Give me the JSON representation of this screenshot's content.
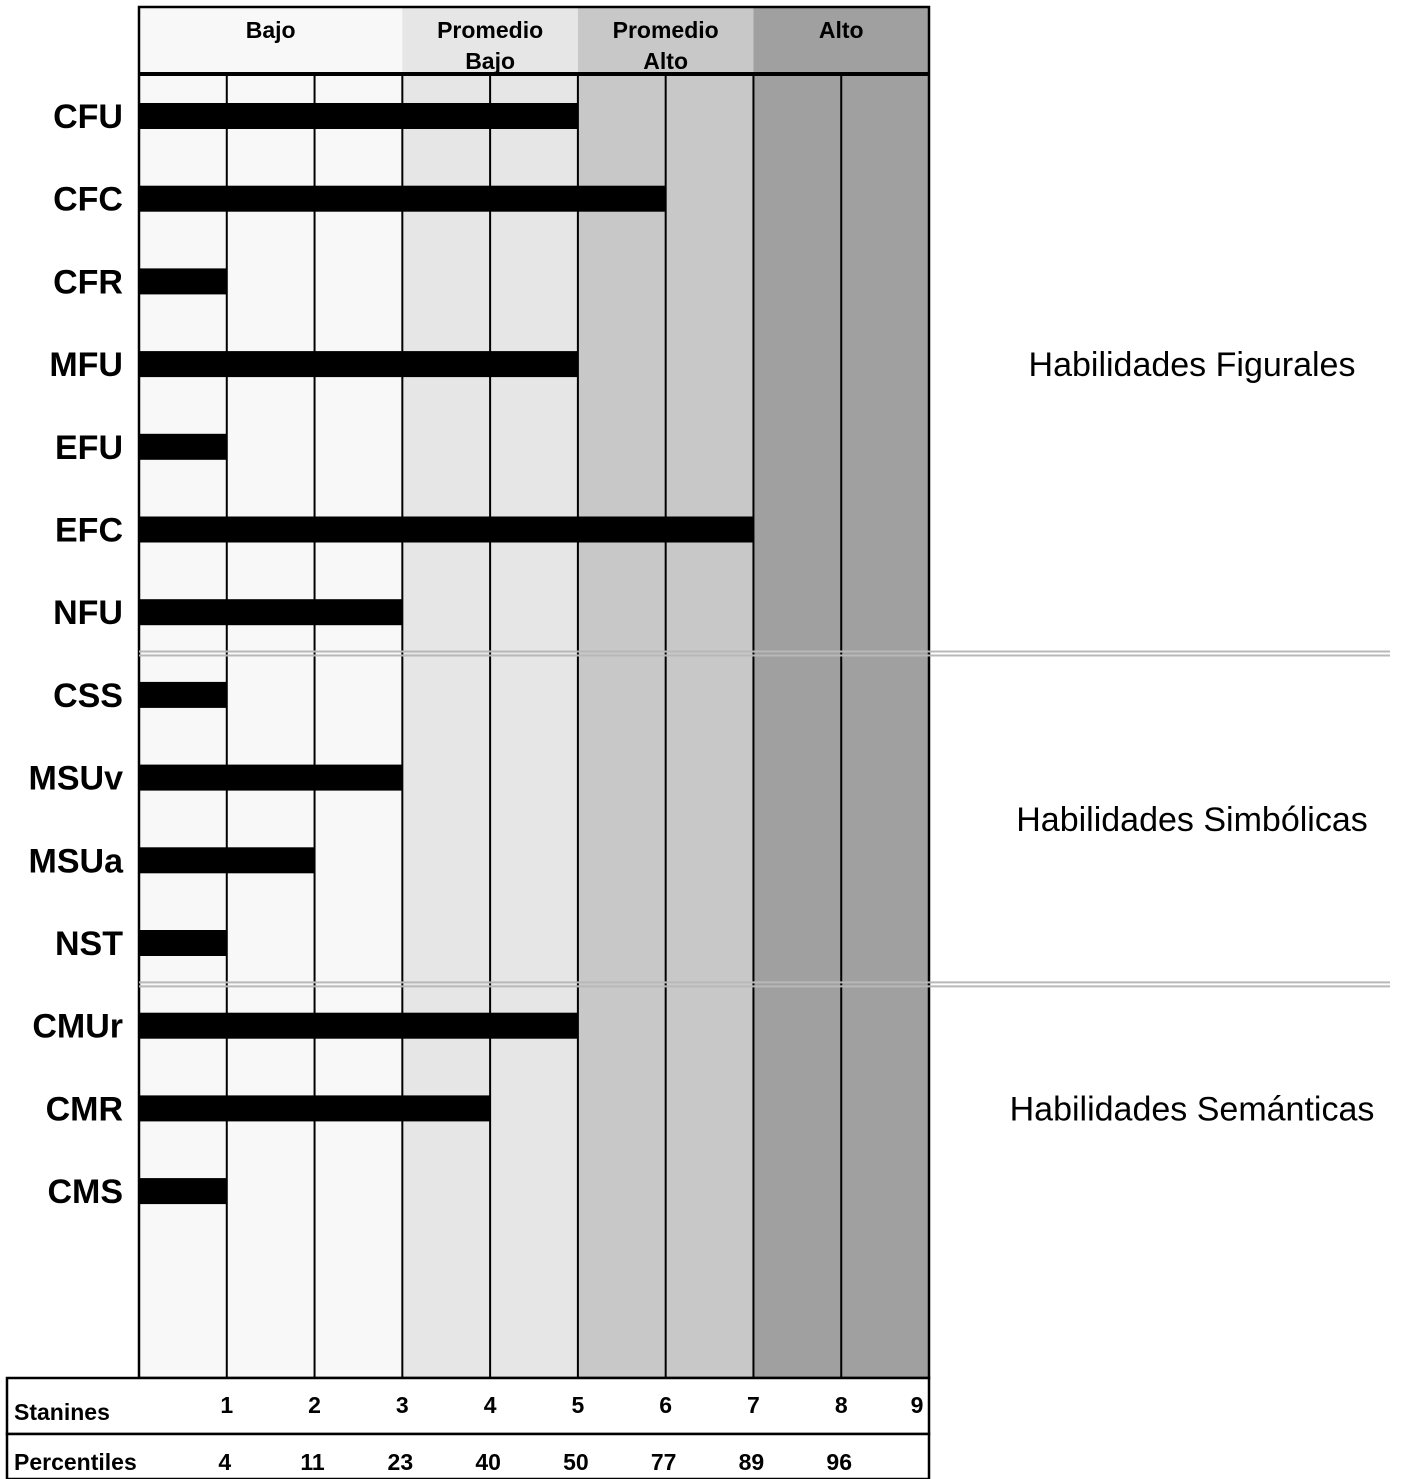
{
  "chart_data": {
    "type": "bar",
    "orientation": "horizontal",
    "categories": [
      "CFU",
      "CFC",
      "CFR",
      "MFU",
      "EFU",
      "EFC",
      "NFU",
      "CSS",
      "MSUv",
      "MSUa",
      "NST",
      "CMUr",
      "CMR",
      "CMS"
    ],
    "values": [
      5,
      6,
      1,
      5,
      1,
      7,
      3,
      1,
      3,
      2,
      1,
      5,
      4,
      1
    ],
    "xlim": [
      0,
      9
    ],
    "bar_color": "#000000",
    "bands": [
      {
        "label_lines": [
          "Bajo"
        ],
        "from": 0,
        "to": 3,
        "color": "#f8f8f8"
      },
      {
        "label_lines": [
          "Promedio",
          "Bajo"
        ],
        "from": 3,
        "to": 5,
        "color": "#e6e6e6"
      },
      {
        "label_lines": [
          "Promedio",
          "Alto"
        ],
        "from": 5,
        "to": 7,
        "color": "#c8c8c8"
      },
      {
        "label_lines": [
          "Alto"
        ],
        "from": 7,
        "to": 9,
        "color": "#a0a0a0"
      }
    ],
    "stanines": {
      "label": "Stanines",
      "ticks": [
        "1",
        "2",
        "3",
        "4",
        "5",
        "6",
        "7",
        "8",
        "9"
      ]
    },
    "percentiles": {
      "label": "Percentiles",
      "ticks": [
        "4",
        "11",
        "23",
        "40",
        "50",
        "77",
        "89",
        "96"
      ]
    },
    "groups": [
      {
        "label": "Habilidades Figurales",
        "first": 0,
        "last": 6
      },
      {
        "label": "Habilidades Simbólicas",
        "first": 7,
        "last": 10
      },
      {
        "label": "Habilidades Semánticas",
        "first": 11,
        "last": 13
      }
    ]
  }
}
